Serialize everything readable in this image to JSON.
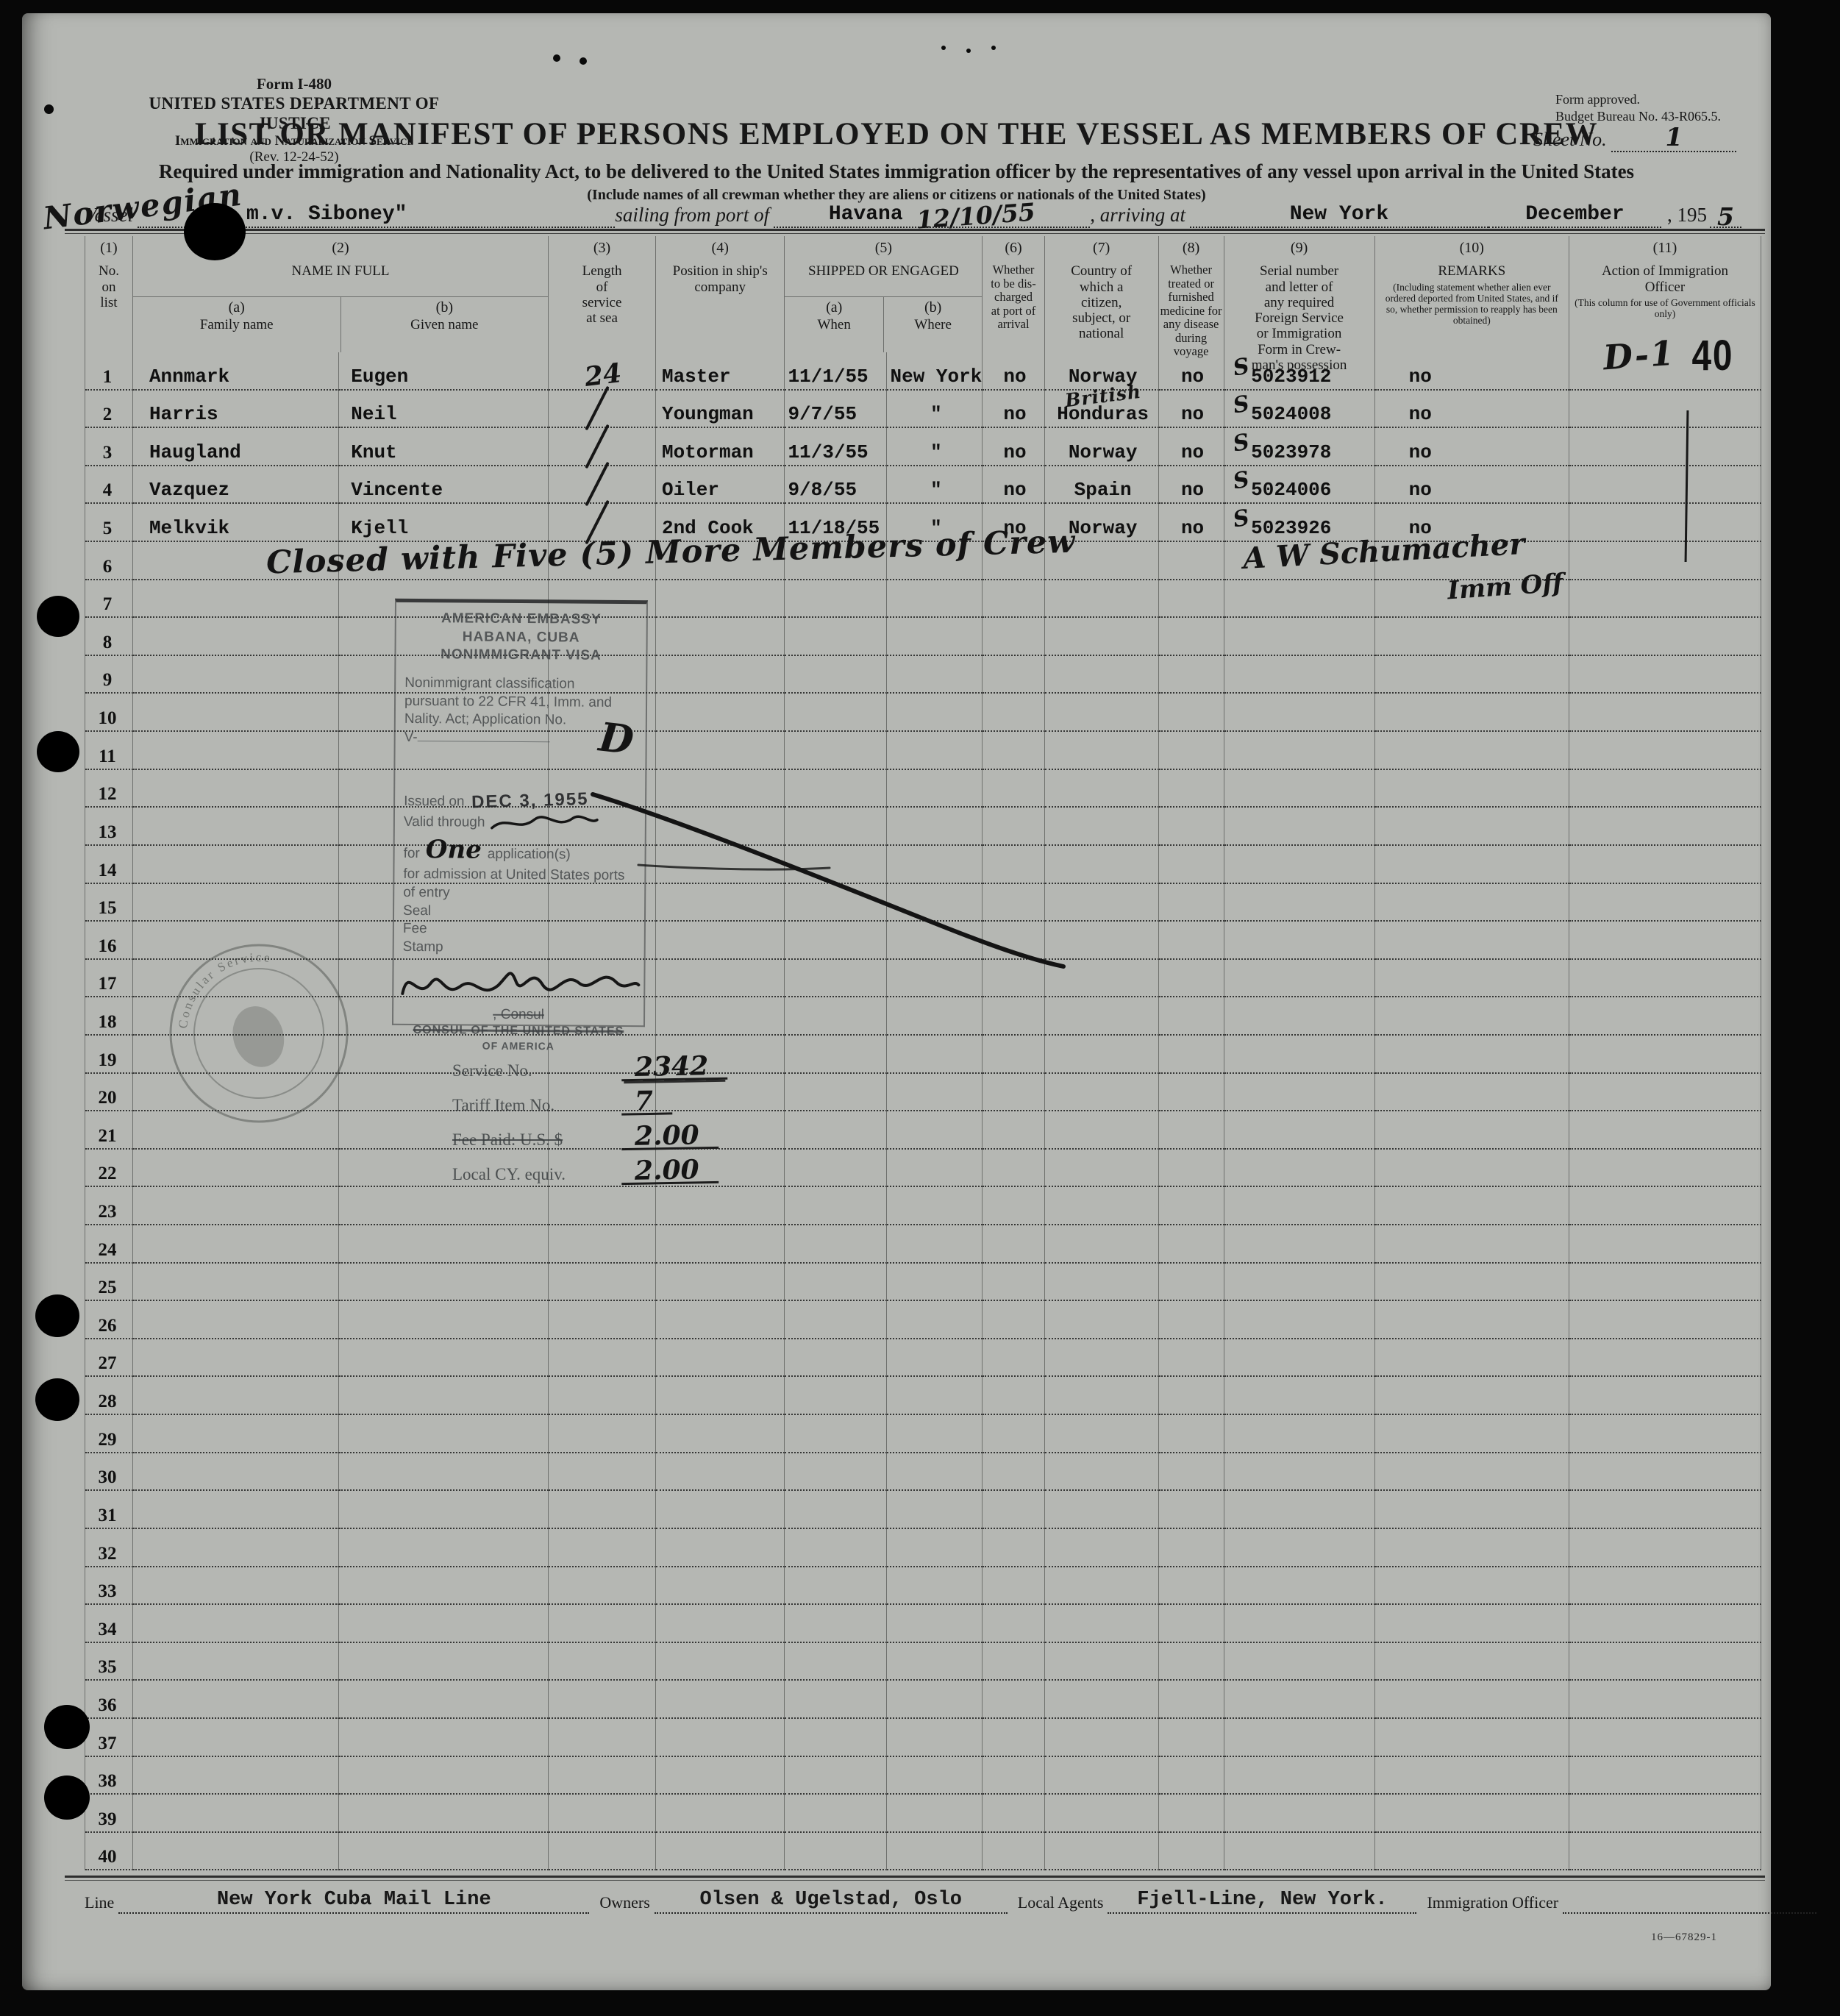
{
  "colors": {
    "page_background": "#b5b7b3",
    "ink": "#171717",
    "stamp_ink": "#4e5254"
  },
  "form_header": {
    "form_no": "Form I-480",
    "department": "UNITED STATES DEPARTMENT OF JUSTICE",
    "service": "Immigration and Naturalization Service",
    "revision": "(Rev. 12-24-52)",
    "approved_line1": "Form approved.",
    "approved_line2": "Budget Bureau No. 43-R065.5.",
    "title": "LIST OR MANIFEST OF PERSONS EMPLOYED ON THE VESSEL AS MEMBERS OF CREW",
    "sheet_label": "Sheet No.",
    "sheet_value": "1",
    "requirement": "Required under immigration and Nationality Act, to be delivered to the United States immigration officer by the representatives of any vessel upon arrival in the United States",
    "include_note": "(Include names of all crewman whether they are aliens or citizens or nationals of the United States)",
    "nationality_hand": "Norwegian",
    "page_stamp": "40"
  },
  "vessel_line": {
    "vessel_label": "Vessel",
    "vessel_name": "m.v. Siboney\"",
    "sailing_label": "sailing from port of",
    "sailing_port": "Havana",
    "sailing_date_hand": "12/10/55",
    "arriving_label": ", arriving at",
    "arriving_port": "New York",
    "month": "December",
    "year_printed": ", 195",
    "year_hand": "5"
  },
  "table": {
    "row_count": 40,
    "columns": [
      {
        "key": "no",
        "num": "(1)",
        "label": "No.\non\nlist"
      },
      {
        "key": "name",
        "num": "(2)",
        "label": "NAME IN FULL",
        "subs": [
          {
            "letter": "(a)",
            "label": "Family name"
          },
          {
            "letter": "(b)",
            "label": "Given name"
          }
        ]
      },
      {
        "key": "service",
        "num": "(3)",
        "label": "Length\nof\nservice\nat sea"
      },
      {
        "key": "position",
        "num": "(4)",
        "label": "Position in ship's\ncompany"
      },
      {
        "key": "shipped",
        "num": "(5)",
        "label": "SHIPPED OR ENGAGED",
        "subs": [
          {
            "letter": "(a)",
            "label": "When"
          },
          {
            "letter": "(b)",
            "label": "Where"
          }
        ]
      },
      {
        "key": "discharged",
        "num": "(6)",
        "label": "Whether\nto be dis-\ncharged\nat port of\narrival"
      },
      {
        "key": "country",
        "num": "(7)",
        "label": "Country of\nwhich a\ncitizen,\nsubject, or\nnational"
      },
      {
        "key": "treated",
        "num": "(8)",
        "label": "Whether\ntreated or\nfurnished\nmedicine for\nany disease\nduring\nvoyage"
      },
      {
        "key": "serial",
        "num": "(9)",
        "label": "Serial number\nand letter of\nany required\nForeign Service\nor Immigration\nForm in Crew-\nman's possession"
      },
      {
        "key": "remarks",
        "num": "(10)",
        "label": "REMARKS",
        "small": "(Including statement whether alien ever ordered deported from United States, and if so, whether permission to reapply has been obtained)"
      },
      {
        "key": "action",
        "num": "(11)",
        "label": "Action of Immigration\nOfficer",
        "small": "(This column for use of Government officials only)"
      }
    ],
    "crew": [
      {
        "no": 1,
        "family": "Annmark",
        "given": "Eugen",
        "service_hand": "24",
        "position": "Master",
        "when": "11/1/55",
        "where": "New York",
        "discharged": "no",
        "country": "Norway",
        "treated": "no",
        "serial_s": "S",
        "serial": "5023912",
        "remarks": "no",
        "action_hand": "D-1"
      },
      {
        "no": 2,
        "family": "Harris",
        "given": "Neil",
        "service_slash": true,
        "position": "Youngman",
        "when": "9/7/55",
        "where": "\"",
        "discharged": "no",
        "country": "Honduras",
        "country_hand": "British",
        "treated": "no",
        "serial_s": "S",
        "serial": "5024008",
        "remarks": "no"
      },
      {
        "no": 3,
        "family": "Haugland",
        "given": "Knut",
        "service_slash": true,
        "position": "Motorman",
        "when": "11/3/55",
        "where": "\"",
        "discharged": "no",
        "country": "Norway",
        "treated": "no",
        "serial_s": "S",
        "serial": "5023978",
        "remarks": "no"
      },
      {
        "no": 4,
        "family": "Vazquez",
        "given": "Vincente",
        "service_slash": true,
        "position": "Oiler",
        "when": "9/8/55",
        "where": "\"",
        "discharged": "no",
        "country": "Spain",
        "treated": "no",
        "serial_s": "S",
        "serial": "5024006",
        "remarks": "no"
      },
      {
        "no": 5,
        "family": "Melkvik",
        "given": "Kjell",
        "service_slash": true,
        "position": "2nd Cook",
        "when": "11/18/55",
        "where": "\"",
        "discharged": "no",
        "country": "Norway",
        "treated": "no",
        "serial_s": "S",
        "serial": "5023926",
        "remarks": "no"
      }
    ],
    "closing_note": {
      "text": "Closed with Five (5) More Members of Crew",
      "officer_signature": "A W Schumacher",
      "officer_title": "Imm Off"
    }
  },
  "visa_stamp": {
    "line1": "AMERICAN EMBASSY",
    "line2": "HABANA, CUBA",
    "line3": "NONIMMIGRANT VISA",
    "class_label": "Nonimmigrant classification",
    "class_value_hand": "D",
    "line5": "pursuant to 22 CFR 41, Imm. and",
    "line6": "Nality. Act; Application No.",
    "v_label": "V-",
    "issued_label": "Issued on",
    "issued_date": "DEC 3, 1955",
    "valid_label": "Valid through",
    "for_label": "for",
    "for_value_hand": "One",
    "applications_label": "application(s)",
    "admission_line": "for admission at United States ports",
    "entry_line": "of entry",
    "seal_label": "Seal",
    "fee_label": "Fee",
    "stamp_label": "Stamp",
    "consul_line": ", Consul",
    "consul_line2": "Consul of the United States",
    "consul_line3": "of America"
  },
  "consular_seal": {
    "arc_text": "Consular Service"
  },
  "fee_block": {
    "service_no_label": "Service No.",
    "service_no_value": "2342",
    "tariff_label": "Tariff Item No.",
    "tariff_value": "7",
    "fee_paid_label": "Fee Paid: U.S. $",
    "fee_paid_value": "2.00",
    "local_label": "Local CY. equiv.",
    "local_value": "2.00"
  },
  "footer": {
    "line_label": "Line",
    "line_value": "New York Cuba Mail Line",
    "owners_label": "Owners",
    "owners_value": "Olsen & Ugelstad, Oslo",
    "agents_label": "Local Agents",
    "agents_value": "Fjell-Line, New York.",
    "officer_label": "Immigration Officer",
    "officer_value": "",
    "print_code": "16—67829-1"
  }
}
